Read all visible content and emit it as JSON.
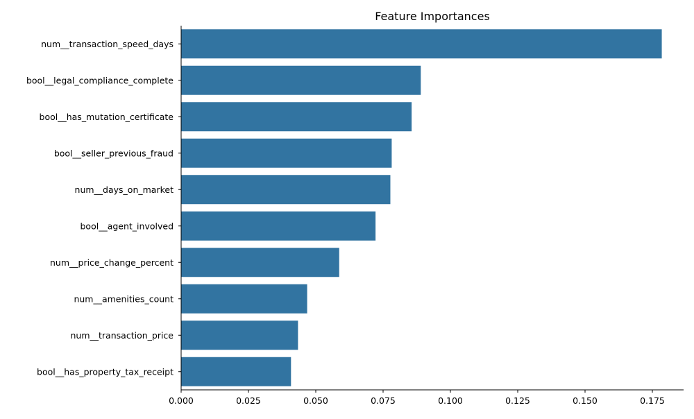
{
  "chart_data": {
    "type": "bar",
    "orientation": "horizontal",
    "title": "Feature Importances",
    "xlabel": "",
    "ylabel": "",
    "xlim": [
      0,
      0.1866
    ],
    "xticks": [
      0.0,
      0.025,
      0.05,
      0.075,
      0.1,
      0.125,
      0.15,
      0.175
    ],
    "xtick_labels": [
      "0.000",
      "0.025",
      "0.050",
      "0.075",
      "0.100",
      "0.125",
      "0.150",
      "0.175"
    ],
    "categories": [
      "num__transaction_speed_days",
      "bool__legal_compliance_complete",
      "bool__has_mutation_certificate",
      "bool__seller_previous_fraud",
      "num__days_on_market",
      "bool__agent_involved",
      "num__price_change_percent",
      "num__amenities_count",
      "num__transaction_price",
      "bool__has_property_tax_receipt"
    ],
    "values": [
      0.1785,
      0.089,
      0.0856,
      0.0782,
      0.0777,
      0.0722,
      0.0587,
      0.0468,
      0.0434,
      0.0408
    ],
    "bar_color": "#3274a1",
    "grid": false,
    "legend": "none"
  }
}
